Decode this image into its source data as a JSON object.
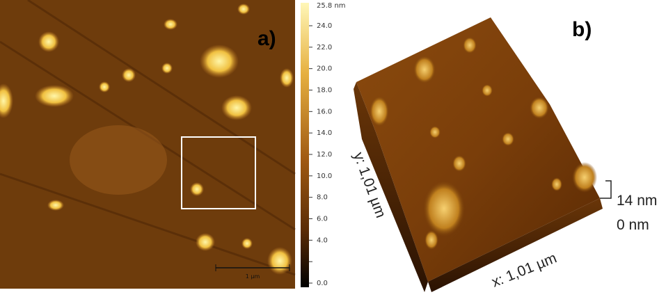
{
  "panel_a": {
    "label": "a)",
    "scale_bar": "1 µm"
  },
  "colorbar": {
    "max_label": "25.8 nm",
    "ticks": [
      "24.0",
      "22.0",
      "20.0",
      "18.0",
      "16.0",
      "14.0",
      "12.0",
      "10.0",
      "8.0",
      "6.0",
      "4.0",
      "",
      "0.0"
    ]
  },
  "panel_b": {
    "label": "b)",
    "x_axis": "x: 1,01 µm",
    "y_axis": "y: 1,01 µm",
    "z_top": "14 nm",
    "z_bottom": "0 nm"
  }
}
